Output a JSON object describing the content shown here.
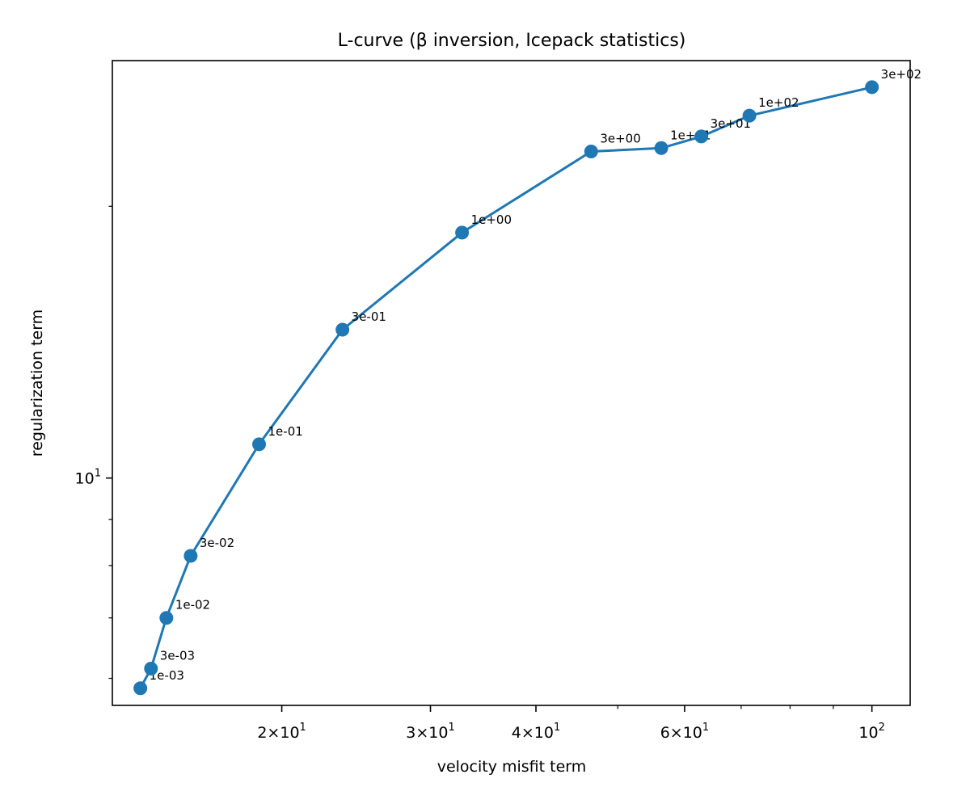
{
  "chart_data": {
    "type": "line",
    "title": "L-curve (β inversion, Icepack statistics)",
    "xlabel": "velocity misfit term",
    "ylabel": "regularization term",
    "xscale": "log",
    "yscale": "log",
    "xlim": [
      12.6,
      111
    ],
    "ylim": [
      5.6,
      29
    ],
    "grid": false,
    "color": "#1f77b4",
    "x_major_ticks": [
      {
        "value": 20,
        "mant": "2",
        "exp": "1"
      },
      {
        "value": 30,
        "mant": "3",
        "exp": "1"
      },
      {
        "value": 40,
        "mant": "4",
        "exp": "1"
      },
      {
        "value": 60,
        "mant": "6",
        "exp": "1"
      },
      {
        "value": 100,
        "mant": "",
        "exp": "2"
      }
    ],
    "x_minor_ticks": [
      50,
      70,
      80,
      90
    ],
    "y_major_ticks": [
      {
        "value": 10,
        "mant": "",
        "exp": "1"
      }
    ],
    "y_minor_ticks": [
      6,
      7,
      8,
      9,
      20
    ],
    "points": [
      {
        "label": "1e-03",
        "x": 13.6,
        "y": 5.85
      },
      {
        "label": "3e-03",
        "x": 14.0,
        "y": 6.15
      },
      {
        "label": "1e-02",
        "x": 14.6,
        "y": 7.0
      },
      {
        "label": "3e-02",
        "x": 15.6,
        "y": 8.2
      },
      {
        "label": "1e-01",
        "x": 18.8,
        "y": 10.9
      },
      {
        "label": "3e-01",
        "x": 23.6,
        "y": 14.6
      },
      {
        "label": "1e+00",
        "x": 32.7,
        "y": 18.7
      },
      {
        "label": "3e+00",
        "x": 46.5,
        "y": 23.0
      },
      {
        "label": "1e+01",
        "x": 56.3,
        "y": 23.2
      },
      {
        "label": "3e+01",
        "x": 62.8,
        "y": 23.9
      },
      {
        "label": "1e+02",
        "x": 71.6,
        "y": 25.2
      },
      {
        "label": "3e+02",
        "x": 100.0,
        "y": 27.1
      }
    ]
  }
}
